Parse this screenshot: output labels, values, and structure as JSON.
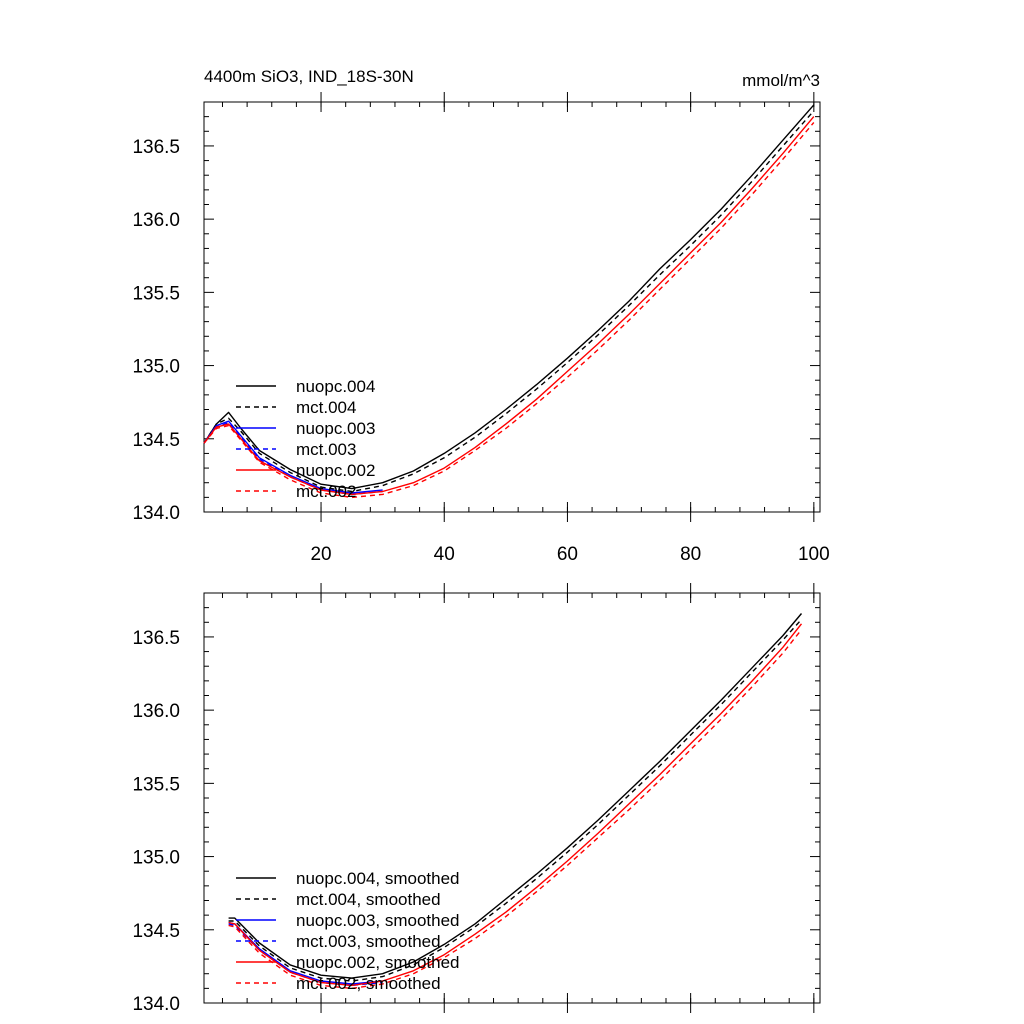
{
  "chart_data": [
    {
      "type": "line",
      "title": "4400m SiO3, IND_18S-30N",
      "units": "mmol/m^3",
      "xlabel": "",
      "ylabel": "",
      "xlim": [
        1,
        101
      ],
      "ylim": [
        134.0,
        136.8
      ],
      "x_ticks": [
        20,
        40,
        60,
        80,
        100
      ],
      "x_tick_labels": [
        "20",
        "40",
        "60",
        "80",
        "100"
      ],
      "y_ticks": [
        134.0,
        134.5,
        135.0,
        135.5,
        136.0,
        136.5
      ],
      "y_tick_labels": [
        "134.0",
        "134.5",
        "135.0",
        "135.5",
        "136.0",
        "136.5"
      ],
      "legend_position": "lower-left",
      "series": [
        {
          "name": "nuopc.004",
          "color": "#000000",
          "dash": "solid",
          "x": [
            1,
            3,
            5,
            7,
            10,
            15,
            20,
            25,
            30,
            35,
            40,
            45,
            50,
            55,
            60,
            65,
            70,
            75,
            80,
            85,
            90,
            95,
            100
          ],
          "values": [
            134.47,
            134.6,
            134.68,
            134.57,
            134.42,
            134.29,
            134.19,
            134.16,
            134.2,
            134.28,
            134.4,
            134.54,
            134.7,
            134.87,
            135.05,
            135.24,
            135.44,
            135.66,
            135.86,
            136.07,
            136.3,
            136.54,
            136.78
          ]
        },
        {
          "name": "mct.004",
          "color": "#000000",
          "dash": "dashed",
          "x": [
            1,
            3,
            5,
            7,
            10,
            15,
            20,
            25,
            30,
            35,
            40,
            45,
            50,
            55,
            60,
            65,
            70,
            75,
            80,
            85,
            90,
            95,
            100
          ],
          "values": [
            134.47,
            134.6,
            134.64,
            134.55,
            134.4,
            134.27,
            134.17,
            134.14,
            134.18,
            134.26,
            134.37,
            134.51,
            134.67,
            134.84,
            135.02,
            135.21,
            135.41,
            135.62,
            135.82,
            136.03,
            136.26,
            136.5,
            136.74
          ]
        },
        {
          "name": "nuopc.003",
          "color": "#0000ff",
          "dash": "solid",
          "x": [
            1,
            3,
            5,
            7,
            10,
            15,
            20,
            25,
            30
          ],
          "values": [
            134.47,
            134.59,
            134.62,
            134.52,
            134.37,
            134.25,
            134.16,
            134.13,
            134.15
          ]
        },
        {
          "name": "mct.003",
          "color": "#0000ff",
          "dash": "dashed",
          "x": [
            1,
            3,
            5,
            7,
            10,
            15,
            20,
            25,
            30
          ],
          "values": [
            134.47,
            134.58,
            134.61,
            134.51,
            134.36,
            134.24,
            134.15,
            134.12,
            134.14
          ]
        },
        {
          "name": "nuopc.002",
          "color": "#ff0000",
          "dash": "solid",
          "x": [
            1,
            3,
            5,
            7,
            10,
            15,
            20,
            25,
            30,
            35,
            40,
            45,
            50,
            55,
            60,
            65,
            70,
            75,
            80,
            85,
            90,
            95,
            100
          ],
          "values": [
            134.47,
            134.58,
            134.6,
            134.5,
            134.35,
            134.24,
            134.15,
            134.12,
            134.14,
            134.2,
            134.3,
            134.44,
            134.6,
            134.77,
            134.96,
            135.15,
            135.35,
            135.56,
            135.77,
            135.98,
            136.21,
            136.45,
            136.7
          ]
        },
        {
          "name": "mct.002",
          "color": "#ff0000",
          "dash": "dashed",
          "x": [
            1,
            3,
            5,
            7,
            10,
            15,
            20,
            25,
            30,
            35,
            40,
            45,
            50,
            55,
            60,
            65,
            70,
            75,
            80,
            85,
            90,
            95,
            100
          ],
          "values": [
            134.47,
            134.57,
            134.59,
            134.49,
            134.34,
            134.22,
            134.13,
            134.1,
            134.12,
            134.18,
            134.28,
            134.42,
            134.57,
            134.74,
            134.92,
            135.11,
            135.31,
            135.52,
            135.73,
            135.94,
            136.17,
            136.41,
            136.66
          ]
        }
      ]
    },
    {
      "type": "line",
      "title": "",
      "xlabel": "",
      "ylabel": "",
      "xlim": [
        1,
        101
      ],
      "ylim": [
        134.0,
        136.8
      ],
      "x_ticks": [
        20,
        40,
        60,
        80,
        100
      ],
      "y_ticks": [
        134.0,
        134.5,
        135.0,
        135.5,
        136.0,
        136.5
      ],
      "y_tick_labels": [
        "134.0",
        "134.5",
        "135.0",
        "135.5",
        "136.0",
        "136.5"
      ],
      "legend_position": "lower-left",
      "series": [
        {
          "name": "nuopc.004, smoothed",
          "color": "#000000",
          "dash": "solid",
          "x": [
            5,
            6,
            10,
            15,
            20,
            25,
            30,
            35,
            40,
            45,
            50,
            55,
            60,
            65,
            70,
            75,
            80,
            85,
            90,
            95,
            98
          ],
          "values": [
            134.58,
            134.58,
            134.41,
            134.26,
            134.19,
            134.17,
            134.2,
            134.28,
            134.4,
            134.54,
            134.71,
            134.88,
            135.06,
            135.25,
            135.45,
            135.65,
            135.86,
            136.07,
            136.29,
            136.51,
            136.66
          ]
        },
        {
          "name": "mct.004, smoothed",
          "color": "#000000",
          "dash": "dashed",
          "x": [
            5,
            6,
            10,
            15,
            20,
            25,
            30,
            35,
            40,
            45,
            50,
            55,
            60,
            65,
            70,
            75,
            80,
            85,
            90,
            95,
            98
          ],
          "values": [
            134.56,
            134.56,
            134.39,
            134.24,
            134.17,
            134.15,
            134.18,
            134.26,
            134.38,
            134.52,
            134.68,
            134.85,
            135.03,
            135.22,
            135.42,
            135.62,
            135.83,
            136.04,
            136.26,
            136.48,
            136.62
          ]
        },
        {
          "name": "nuopc.003, smoothed",
          "color": "#0000ff",
          "dash": "solid",
          "x": [
            5,
            6,
            10,
            15,
            20,
            25,
            30
          ],
          "values": [
            134.55,
            134.54,
            134.37,
            134.22,
            134.15,
            134.13,
            134.15
          ]
        },
        {
          "name": "mct.003, smoothed",
          "color": "#0000ff",
          "dash": "dashed",
          "x": [
            5,
            6,
            10,
            15,
            20,
            25,
            30
          ],
          "values": [
            134.54,
            134.53,
            134.36,
            134.21,
            134.14,
            134.12,
            134.14
          ]
        },
        {
          "name": "nuopc.002, smoothed",
          "color": "#ff0000",
          "dash": "solid",
          "x": [
            5,
            6,
            10,
            15,
            20,
            25,
            30,
            35,
            40,
            45,
            50,
            55,
            60,
            65,
            70,
            75,
            80,
            85,
            90,
            95,
            98
          ],
          "values": [
            134.55,
            134.54,
            134.36,
            134.21,
            134.14,
            134.12,
            134.15,
            134.22,
            134.33,
            134.47,
            134.62,
            134.79,
            134.97,
            135.16,
            135.36,
            135.56,
            135.77,
            135.98,
            136.2,
            136.43,
            136.59
          ]
        },
        {
          "name": "mct.002, smoothed",
          "color": "#ff0000",
          "dash": "dashed",
          "x": [
            5,
            6,
            10,
            15,
            20,
            25,
            30,
            35,
            40,
            45,
            50,
            55,
            60,
            65,
            70,
            75,
            80,
            85,
            90,
            95,
            98
          ],
          "values": [
            134.53,
            134.52,
            134.34,
            134.19,
            134.12,
            134.1,
            134.13,
            134.2,
            134.31,
            134.44,
            134.59,
            134.76,
            134.94,
            135.13,
            135.32,
            135.52,
            135.73,
            135.94,
            136.16,
            136.39,
            136.55
          ]
        }
      ]
    }
  ]
}
